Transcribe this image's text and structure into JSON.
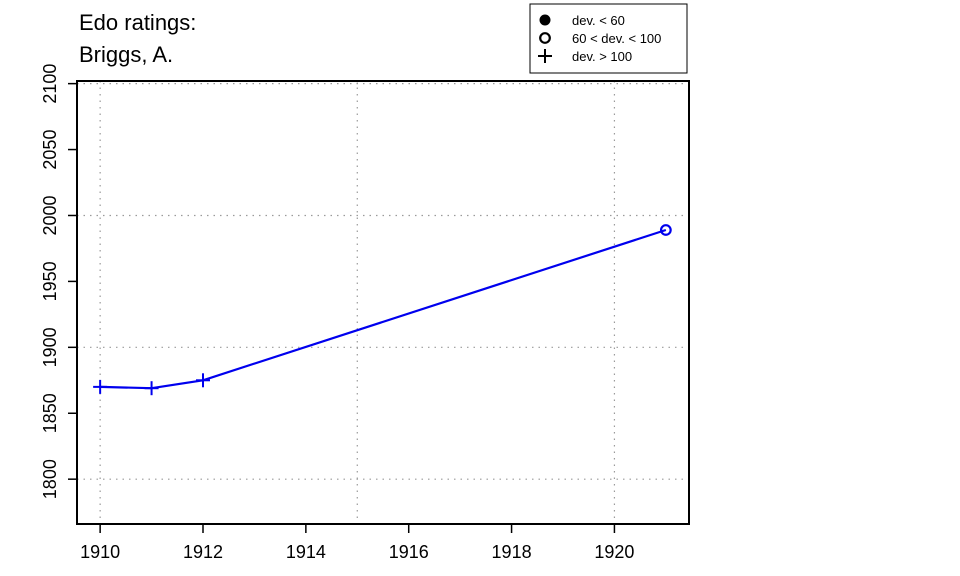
{
  "chart_data": {
    "type": "line",
    "title_lines": [
      "Edo ratings:",
      "Briggs, A."
    ],
    "xlabel": "",
    "ylabel": "",
    "xlim": [
      1909.55,
      1921.45
    ],
    "ylim": [
      1766,
      2102
    ],
    "x_ticks": [
      1910,
      1912,
      1914,
      1916,
      1918,
      1920
    ],
    "y_ticks": [
      1800,
      1850,
      1900,
      1950,
      2000,
      2050,
      2100
    ],
    "x_grid": [
      1910,
      1915,
      1920
    ],
    "y_grid": [
      1800,
      1900,
      2000,
      2100
    ],
    "grid": true,
    "legend_position": "top-right",
    "legend": [
      {
        "marker": "filled-circle",
        "label": "dev. < 60"
      },
      {
        "marker": "open-circle",
        "label": "60 < dev. < 100"
      },
      {
        "marker": "plus",
        "label": "dev. > 100"
      }
    ],
    "series": [
      {
        "color": "#0000ee",
        "points": [
          {
            "x": 1910,
            "y": 1870,
            "marker": "plus"
          },
          {
            "x": 1911,
            "y": 1869,
            "marker": "plus"
          },
          {
            "x": 1912,
            "y": 1875,
            "marker": "plus"
          },
          {
            "x": 1921,
            "y": 1989,
            "marker": "open-circle"
          }
        ]
      }
    ]
  }
}
